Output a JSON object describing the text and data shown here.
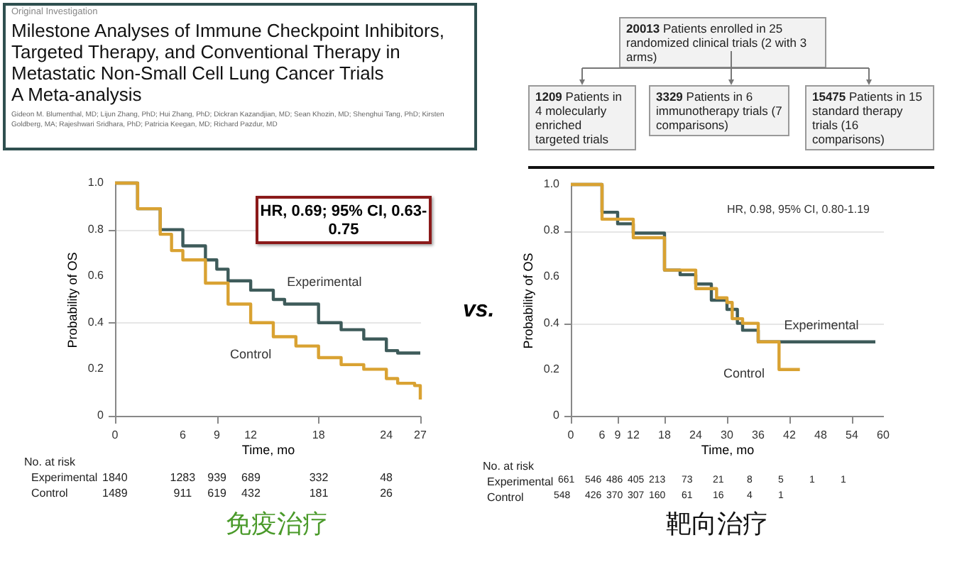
{
  "chart_data": [
    {
      "type": "step",
      "title": "Milestone Analyses of Immune Checkpoint Inhibitors, Targeted Therapy, and Conventional Therapy in Metastatic Non-Small Cell Lung Cancer Trials",
      "subtitle": "A Meta-analysis",
      "xlabel": "Time, mo",
      "ylabel": "Probability of OS",
      "annotations": [
        "Original Investigation",
        "Gideon M. Blumenthal, MD; Lijun Zhang, PhD; Hui Zhang, PhD; Dickran Kazandjian, MD; Sean Khozin, MD; Shenghui Tang, PhD; Kirsten Goldberg, MA; Rajeshwari Sridhara, PhD; Patricia Keegan, MD; Richard Pazdur, MD",
        "HR, 0.69; 95% CI, 0.63-0.75",
        "No. at risk",
        "Experimental 1840 1283 939 689 332 48",
        "Control 1489 911 619 432 181 26",
        "vs.",
        "免疫治疗"
      ],
      "series": [
        {
          "name": "Experimental",
          "color": "#3e5b5a",
          "x": [
            0,
            2,
            4,
            6,
            8,
            9,
            10,
            12,
            14,
            15,
            18,
            20,
            22,
            24,
            25,
            27
          ],
          "values": [
            1,
            0.89,
            0.8,
            0.73,
            0.67,
            0.63,
            0.58,
            0.54,
            0.5,
            0.48,
            0.4,
            0.37,
            0.33,
            0.28,
            0.27,
            0.27
          ]
        },
        {
          "name": "Control",
          "color": "#d9a232",
          "x": [
            0,
            2,
            4,
            5,
            6,
            8,
            10,
            12,
            14,
            16,
            18,
            20,
            22,
            24,
            25,
            26.5,
            27
          ],
          "values": [
            1,
            0.89,
            0.78,
            0.71,
            0.67,
            0.57,
            0.48,
            0.4,
            0.34,
            0.3,
            0.25,
            0.22,
            0.2,
            0.16,
            0.14,
            0.13,
            0.07
          ]
        }
      ],
      "xlim": [
        0,
        27
      ],
      "xticks": [
        0,
        6,
        9,
        12,
        18,
        24,
        27
      ],
      "ylim": [
        0,
        1
      ],
      "yticks": [
        0,
        0.2,
        0.4,
        0.6,
        0.8,
        {
          "value": 1,
          "label": "1.0"
        }
      ],
      "grid": "y"
    },
    {
      "type": "step",
      "xlabel": "Time, mo",
      "ylabel": "Probability of OS",
      "annotations": [
        "20013 Patients enrolled in 25 randomized clinical trials (2 with 3 arms)",
        "1209 Patients in 4 molecularly enriched targeted trials",
        "3329 Patients in 6 immunotherapy trials (7 comparisons)",
        "15475 Patients in 15 standard therapy trials (16 comparisons)",
        "HR, 0.98, 95% CI, 0.80-1.19",
        "No. at risk",
        "Experimental 661 546 486 405 213 73 21 8 5 1 1",
        "Control 548 426 370 307 160 61 16 4 1",
        "靶向治疗"
      ],
      "series": [
        {
          "name": "Experimental",
          "color": "#3e5b5a",
          "x": [
            0,
            6,
            9,
            12,
            18,
            21,
            24,
            27,
            30,
            32,
            33,
            36,
            58.5
          ],
          "values": [
            1,
            0.88,
            0.83,
            0.79,
            0.63,
            0.61,
            0.57,
            0.5,
            0.46,
            0.4,
            0.37,
            0.32,
            0.32
          ]
        },
        {
          "name": "Control",
          "color": "#d9a232",
          "x": [
            0,
            6,
            12,
            18,
            24,
            28,
            30,
            31,
            33,
            36,
            40,
            44
          ],
          "values": [
            1,
            0.85,
            0.77,
            0.63,
            0.55,
            0.51,
            0.49,
            0.42,
            0.4,
            0.32,
            0.2,
            0.2
          ]
        }
      ],
      "xlim": [
        0,
        60
      ],
      "xticks": [
        0,
        6,
        9,
        12,
        18,
        24,
        30,
        36,
        42,
        48,
        54,
        60
      ],
      "ylim": [
        0,
        1
      ],
      "yticks": [
        0,
        0.2,
        0.4,
        0.6,
        0.8,
        {
          "value": 1,
          "label": "1.0"
        }
      ],
      "grid": "y"
    }
  ]
}
